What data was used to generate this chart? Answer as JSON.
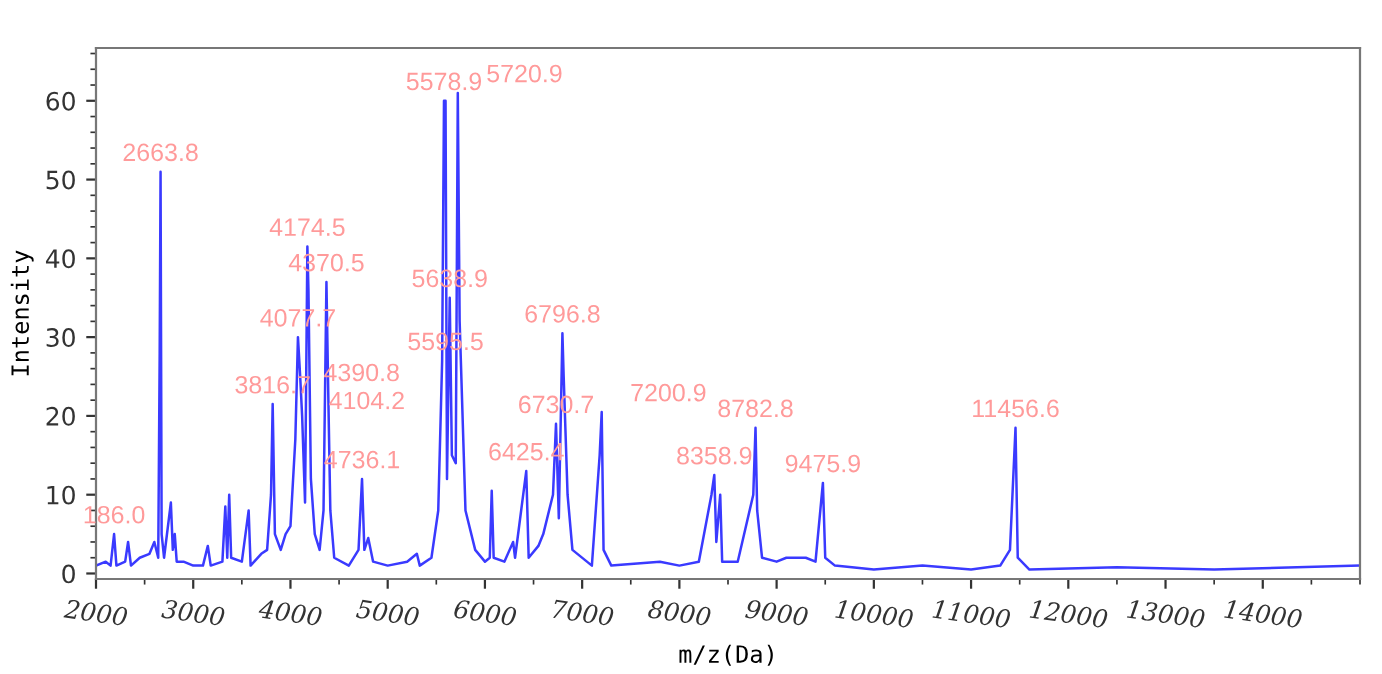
{
  "chart_data": {
    "type": "line",
    "xlabel": "m/z(Da)",
    "ylabel": "Intensity",
    "xlim": [
      2000,
      15000
    ],
    "ylim": [
      -0.7,
      66.7
    ],
    "xticks": [
      2000,
      3000,
      4000,
      5000,
      6000,
      7000,
      8000,
      9000,
      10000,
      11000,
      12000,
      13000,
      14000
    ],
    "yticks": [
      0,
      10,
      20,
      30,
      40,
      50,
      60
    ],
    "grid": false,
    "legend": false,
    "marker": "none",
    "line_style": "solid",
    "series": [
      {
        "color": "#3a3aff",
        "x": [
          2000,
          2100,
          2150,
          2186,
          2210,
          2300,
          2330,
          2360,
          2450,
          2550,
          2600,
          2640,
          2655,
          2664,
          2675,
          2700,
          2770,
          2790,
          2810,
          2830,
          2900,
          3000,
          3100,
          3150,
          3180,
          3300,
          3330,
          3350,
          3370,
          3390,
          3500,
          3570,
          3590,
          3700,
          3760,
          3800,
          3817,
          3840,
          3900,
          3950,
          4000,
          4050,
          4077,
          4100,
          4120,
          4150,
          4174,
          4185,
          4210,
          4250,
          4300,
          4340,
          4370,
          4390,
          4410,
          4450,
          4600,
          4700,
          4736,
          4760,
          4800,
          4850,
          5000,
          5200,
          5300,
          5330,
          5450,
          5520,
          5560,
          5579,
          5595,
          5610,
          5638,
          5660,
          5700,
          5721,
          5740,
          5800,
          5900,
          6000,
          6050,
          6070,
          6090,
          6200,
          6290,
          6310,
          6425,
          6450,
          6550,
          6600,
          6700,
          6731,
          6760,
          6797,
          6810,
          6850,
          6900,
          7100,
          7180,
          7201,
          7220,
          7300,
          7800,
          8000,
          8200,
          8330,
          8359,
          8380,
          8420,
          8440,
          8600,
          8760,
          8783,
          8800,
          8850,
          9000,
          9100,
          9300,
          9400,
          9476,
          9500,
          9600,
          10000,
          10500,
          11000,
          11300,
          11400,
          11457,
          11480,
          11600,
          12500,
          13500,
          15000
        ],
        "values": [
          1,
          1.5,
          1,
          5,
          1,
          1.5,
          4,
          1,
          2,
          2.5,
          4,
          2,
          28,
          51,
          5,
          2,
          9,
          3,
          5,
          1.5,
          1.5,
          1,
          1,
          3.5,
          1,
          1.5,
          8.5,
          2,
          10,
          2,
          1.5,
          8,
          1,
          2.5,
          3,
          10,
          21.5,
          5,
          3,
          5,
          6,
          17,
          30,
          25,
          20,
          9,
          41.5,
          36,
          12,
          5,
          3,
          8,
          37,
          22,
          8,
          2,
          1,
          3,
          12,
          3,
          4.5,
          1.5,
          1,
          1.5,
          2.5,
          1,
          2,
          8,
          27,
          60,
          60,
          12,
          35,
          15,
          14,
          61,
          32,
          8,
          3,
          1.5,
          2,
          10.5,
          2,
          1.5,
          4,
          2,
          13,
          2,
          3.5,
          5,
          10,
          19,
          7,
          30.5,
          25,
          10,
          3,
          1,
          15,
          20.5,
          3,
          1,
          1.5,
          1,
          1.5,
          10,
          12.5,
          4,
          10,
          1.5,
          1.5,
          10,
          18.5,
          8,
          2,
          1.5,
          2,
          2,
          1.5,
          11.5,
          2,
          1,
          0.5,
          1,
          0.5,
          1,
          3,
          18.5,
          2,
          0.5,
          0.8,
          0.5,
          1
        ]
      }
    ],
    "annotations": [
      {
        "text": "186.0",
        "x": 2186,
        "y": 5
      },
      {
        "text": "2663.8",
        "x": 2664,
        "y": 51
      },
      {
        "text": "3816.7",
        "x": 3817,
        "y": 21.5
      },
      {
        "text": "4104.2",
        "x": 4100,
        "y": 19.5
      },
      {
        "text": "4077.7",
        "x": 4077,
        "y": 30
      },
      {
        "text": "4174.5",
        "x": 4174,
        "y": 41.5
      },
      {
        "text": "4370.5",
        "x": 4370,
        "y": 37
      },
      {
        "text": "4390.8",
        "x": 4390,
        "y": 22
      },
      {
        "text": "4736.1",
        "x": 4736,
        "y": 12
      },
      {
        "text": "5578.9",
        "x": 5579,
        "y": 60
      },
      {
        "text": "5720.9",
        "x": 5721,
        "y": 61
      },
      {
        "text": "5638.9",
        "x": 5638,
        "y": 35
      },
      {
        "text": "5595.5",
        "x": 5595,
        "y": 27
      },
      {
        "text": "6425.4",
        "x": 6425,
        "y": 13
      },
      {
        "text": "6730.7",
        "x": 6731,
        "y": 19
      },
      {
        "text": "6796.8",
        "x": 6797,
        "y": 30.5
      },
      {
        "text": "7200.9",
        "x": 7201,
        "y": 20.5
      },
      {
        "text": "8358.9",
        "x": 8359,
        "y": 12.5
      },
      {
        "text": "8782.8",
        "x": 8783,
        "y": 18.5
      },
      {
        "text": "9475.9",
        "x": 9476,
        "y": 11.5
      },
      {
        "text": "11456.6",
        "x": 11457,
        "y": 18.5
      }
    ]
  }
}
